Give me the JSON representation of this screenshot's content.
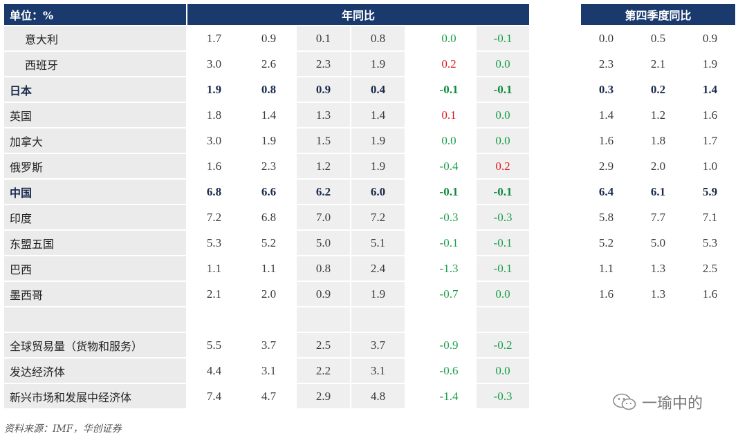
{
  "header": {
    "unit_label": "单位：%",
    "yoy_label": "年同比",
    "q4_label": "第四季度同比"
  },
  "rows": [
    {
      "label": "意大利",
      "vals": [
        "1.7",
        "0.9",
        "0.1",
        "0.8",
        "",
        "0.0",
        "-0.1",
        "",
        "0.0",
        "0.5",
        "0.9"
      ]
    },
    {
      "label": "西班牙",
      "vals": [
        "3.0",
        "2.6",
        "2.3",
        "1.9",
        "",
        "0.2",
        "0.0",
        "",
        "2.3",
        "2.1",
        "1.9"
      ]
    },
    {
      "label": "日本",
      "vals": [
        "1.9",
        "0.8",
        "0.9",
        "0.4",
        "",
        "-0.1",
        "-0.1",
        "",
        "0.3",
        "0.2",
        "1.4"
      ]
    },
    {
      "label": "英国",
      "vals": [
        "1.8",
        "1.4",
        "1.3",
        "1.4",
        "",
        "0.1",
        "0.0",
        "",
        "1.4",
        "1.2",
        "1.6"
      ]
    },
    {
      "label": "加拿大",
      "vals": [
        "3.0",
        "1.9",
        "1.5",
        "1.9",
        "",
        "0.0",
        "0.0",
        "",
        "1.6",
        "1.8",
        "1.7"
      ]
    },
    {
      "label": "俄罗斯",
      "vals": [
        "1.6",
        "2.3",
        "1.2",
        "1.9",
        "",
        "-0.4",
        "0.2",
        "",
        "2.9",
        "2.0",
        "1.0"
      ]
    },
    {
      "label": "中国",
      "vals": [
        "6.8",
        "6.6",
        "6.2",
        "6.0",
        "",
        "-0.1",
        "-0.1",
        "",
        "6.4",
        "6.1",
        "5.9"
      ]
    },
    {
      "label": "印度",
      "vals": [
        "7.2",
        "6.8",
        "7.0",
        "7.2",
        "",
        "-0.3",
        "-0.3",
        "",
        "5.8",
        "7.7",
        "7.1"
      ]
    },
    {
      "label": "东盟五国",
      "vals": [
        "5.3",
        "5.2",
        "5.0",
        "5.1",
        "",
        "-0.1",
        "-0.1",
        "",
        "5.2",
        "5.0",
        "5.3"
      ]
    },
    {
      "label": "巴西",
      "vals": [
        "1.1",
        "1.1",
        "0.8",
        "2.4",
        "",
        "-1.3",
        "-0.1",
        "",
        "1.1",
        "1.3",
        "2.5"
      ]
    },
    {
      "label": "墨西哥",
      "vals": [
        "2.1",
        "2.0",
        "0.9",
        "1.9",
        "",
        "-0.7",
        "0.0",
        "",
        "1.6",
        "1.3",
        "1.6"
      ]
    },
    {
      "label": "",
      "vals": [
        "",
        "",
        "",
        "",
        "",
        "",
        "",
        "",
        "",
        "",
        ""
      ]
    },
    {
      "label": "全球贸易量（货物和服务）",
      "vals": [
        "5.5",
        "3.7",
        "2.5",
        "3.7",
        "",
        "-0.9",
        "-0.2",
        "",
        "",
        "",
        ""
      ]
    },
    {
      "label": "发达经济体",
      "vals": [
        "4.4",
        "3.1",
        "2.2",
        "3.1",
        "",
        "-0.6",
        "0.0",
        "",
        "",
        "",
        ""
      ]
    },
    {
      "label": "新兴市场和发展中经济体",
      "vals": [
        "7.4",
        "4.7",
        "2.9",
        "4.8",
        "",
        "-1.4",
        "-0.3",
        "",
        "",
        "",
        ""
      ]
    }
  ],
  "footer": {
    "source": "资料来源：IMF，华创证券",
    "watermark": "一瑜中的"
  },
  "colors": {
    "header_bg": "#1a3a6d",
    "label_bg": "#ebebeb",
    "grey_cell": "#efefef",
    "positive_change": "#1aa04a",
    "negative_change": "#e02020"
  }
}
